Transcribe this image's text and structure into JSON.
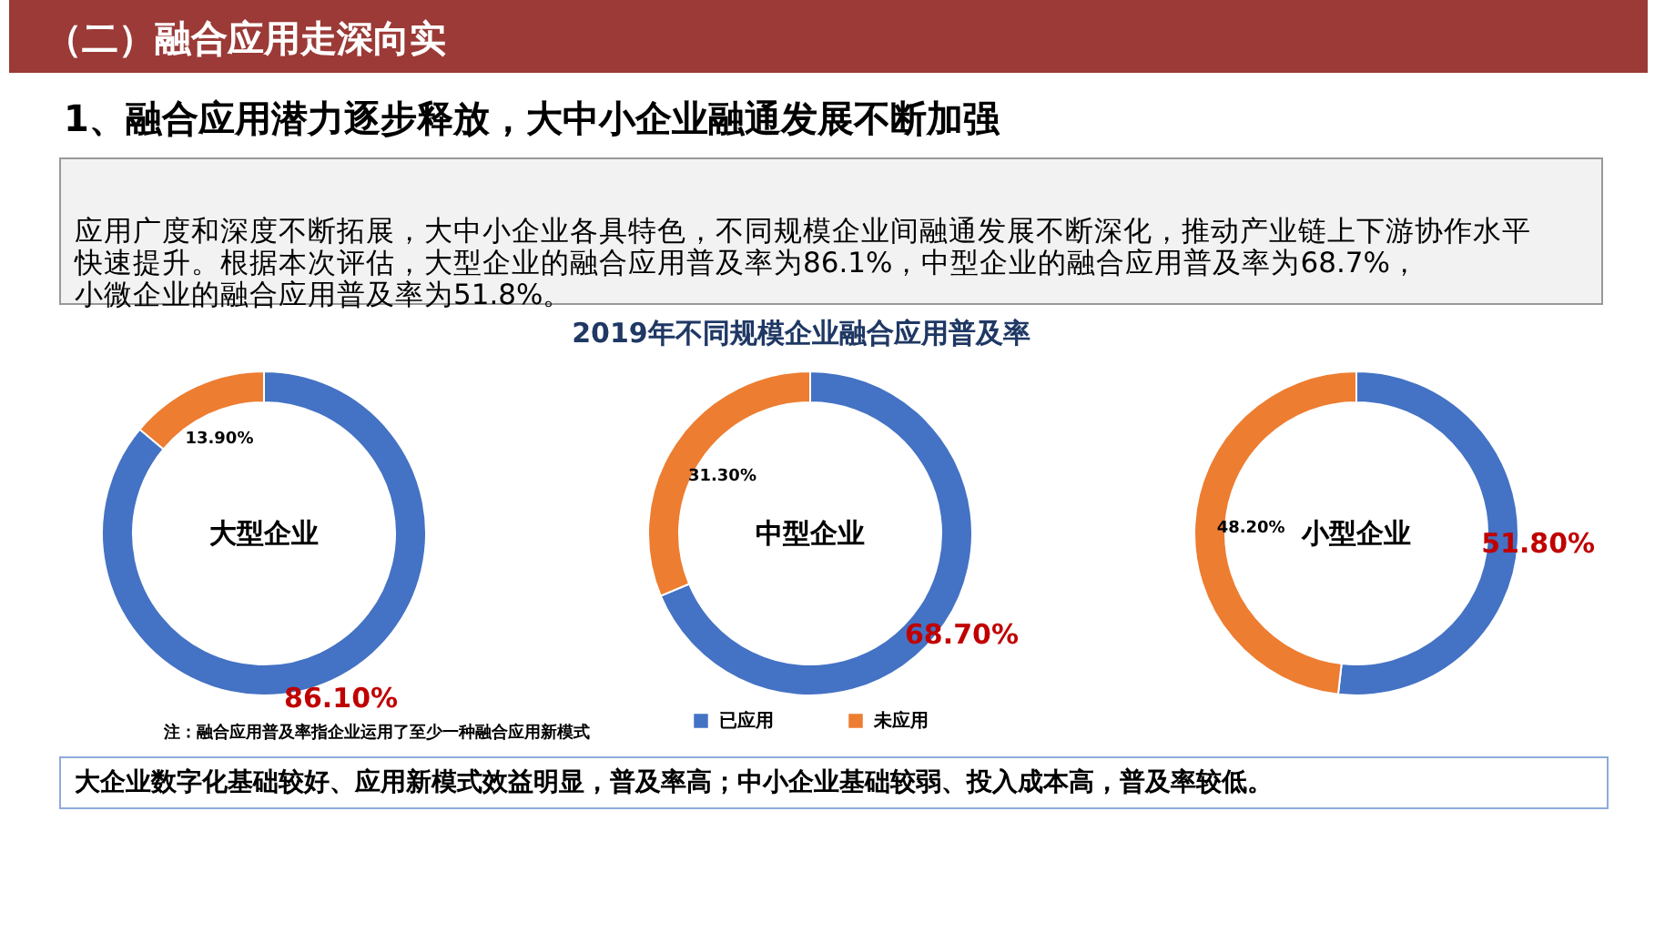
{
  "chart_data": [
    {
      "type": "other",
      "title": "（二）融合应用走深向实",
      "subtitle": "1、融合应用潜力逐步释放，大中小企业融通发展不断加强",
      "annotations": [
        "应用广度和深度不断拓展，大中小企业各具特色，不同规模企业间融通发展不断深化，推动产业链上下游协作水平快速提升。根据本次评估，大型企业的融合应用普及率为86.1%，中型企业的融合应用普及率为68.7%，小微企业的融合应用普及率为51.8%。",
        "大企业数字化基础较好、应用新模式效益明显，普及率高；中小企业基础较弱、投入成本高，普及率较低。"
      ]
    },
    {
      "type": "donut",
      "title": "2019年不同规模企业融合应用普及率",
      "categories": [
        "已应用",
        "未应用"
      ],
      "colors": [
        "#4472c4",
        "#ed7d31"
      ],
      "legend": "bottom",
      "annotations": [
        "注：融合应用普及率指企业运用了至少一种融合应用新模式"
      ],
      "series": [
        {
          "name": "大型企业",
          "values": [
            86.1,
            13.9
          ],
          "value_labels": [
            "86.10%",
            "13.90%"
          ]
        },
        {
          "name": "中型企业",
          "values": [
            68.7,
            31.3
          ],
          "value_labels": [
            "68.70%",
            "31.30%"
          ]
        },
        {
          "name": "小型企业",
          "values": [
            51.8,
            48.2
          ],
          "value_labels": [
            "51.80%",
            "48.20%"
          ]
        }
      ]
    }
  ]
}
